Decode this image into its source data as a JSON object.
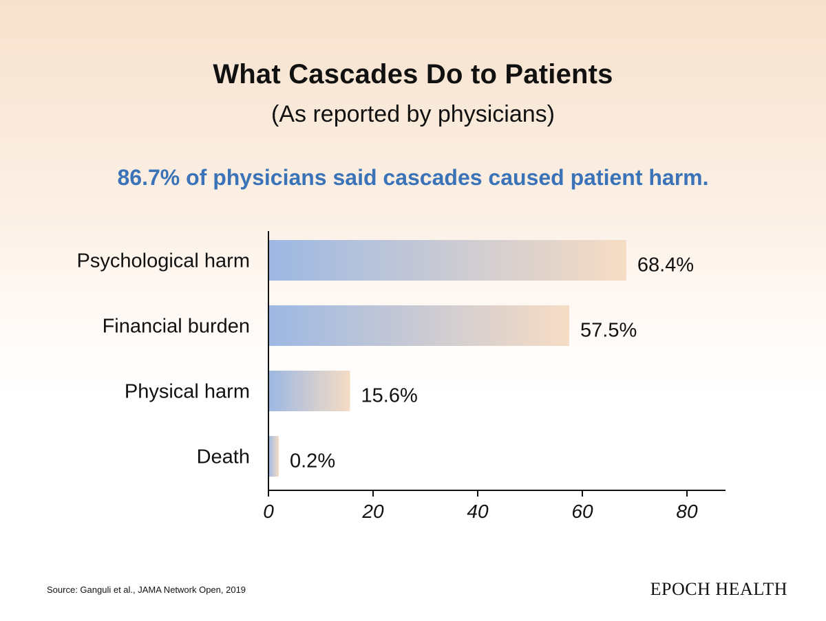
{
  "title": "What Cascades Do to Patients",
  "subtitle": "(As reported by physicians)",
  "highlight": "86.7% of physicians said cascades caused patient harm.",
  "source": "Source: Ganguli et al., JAMA Network Open, 2019",
  "brand": "EPOCH HEALTH",
  "colors": {
    "bar_start": "#9db8e3",
    "bar_end": "#f6dcc4",
    "highlight": "#3a73b8",
    "axis": "#111111"
  },
  "chart_data": {
    "type": "bar",
    "orientation": "horizontal",
    "categories": [
      "Psychological harm",
      "Financial burden",
      "Physical harm",
      "Death"
    ],
    "values": [
      68.4,
      57.5,
      15.6,
      0.2
    ],
    "value_labels": [
      "68.4%",
      "57.5%",
      "15.6%",
      "0.2%"
    ],
    "xlim": [
      0,
      87
    ],
    "xticks": [
      0,
      20,
      40,
      60,
      80
    ],
    "grid": false,
    "legend": "none"
  }
}
